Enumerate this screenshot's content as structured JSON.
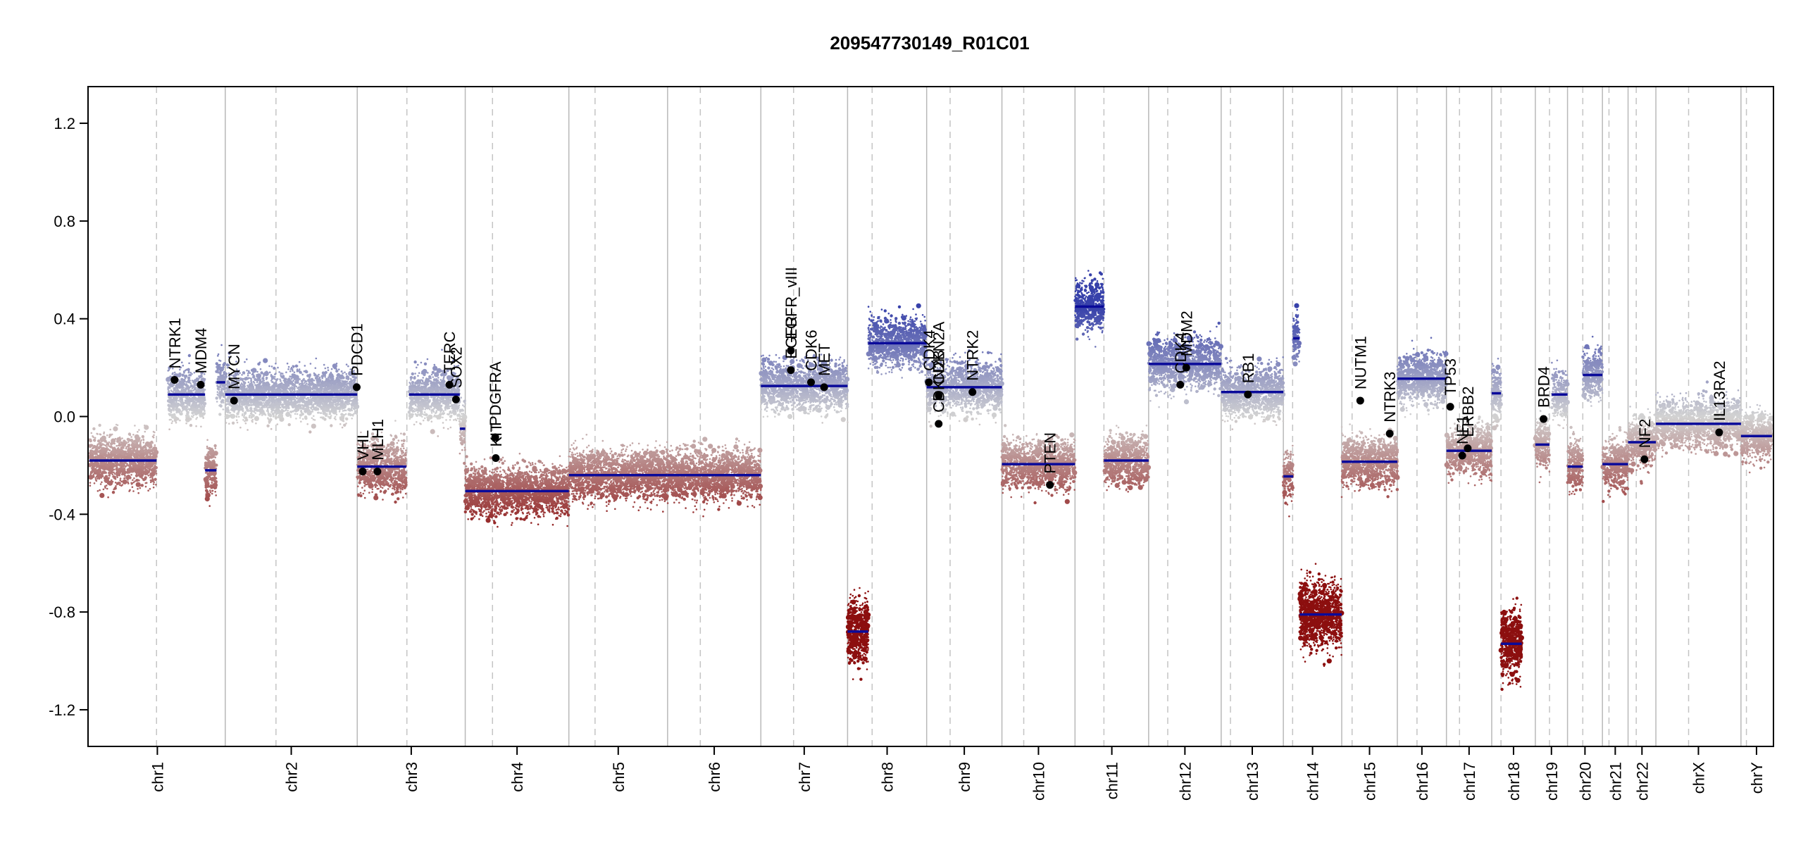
{
  "chart_data": {
    "type": "scatter",
    "title": "209547730149_R01C01",
    "xlabel": "",
    "ylabel": "",
    "ylim": [
      -1.35,
      1.35
    ],
    "yticks": [
      -1.2,
      -0.8,
      -0.4,
      0.0,
      0.4,
      0.8,
      1.2
    ],
    "ytick_labels": [
      "-1.2",
      "-0.8",
      "-0.4",
      "0.0",
      "0.4",
      "0.8",
      "1.2"
    ],
    "x_unit": "genome position (Mb, concatenated)",
    "chromosomes": [
      {
        "name": "chr1",
        "length": 249,
        "centromere": 123
      },
      {
        "name": "chr2",
        "length": 242,
        "centromere": 93
      },
      {
        "name": "chr3",
        "length": 198,
        "centromere": 91
      },
      {
        "name": "chr4",
        "length": 190,
        "centromere": 50
      },
      {
        "name": "chr5",
        "length": 181,
        "centromere": 48
      },
      {
        "name": "chr6",
        "length": 171,
        "centromere": 60
      },
      {
        "name": "chr7",
        "length": 159,
        "centromere": 60
      },
      {
        "name": "chr8",
        "length": 145,
        "centromere": 45
      },
      {
        "name": "chr9",
        "length": 138,
        "centromere": 43
      },
      {
        "name": "chr10",
        "length": 134,
        "centromere": 40
      },
      {
        "name": "chr11",
        "length": 135,
        "centromere": 53
      },
      {
        "name": "chr12",
        "length": 133,
        "centromere": 35
      },
      {
        "name": "chr13",
        "length": 114,
        "centromere": 17
      },
      {
        "name": "chr14",
        "length": 107,
        "centromere": 17
      },
      {
        "name": "chr15",
        "length": 102,
        "centromere": 19
      },
      {
        "name": "chr16",
        "length": 90,
        "centromere": 36
      },
      {
        "name": "chr17",
        "length": 83,
        "centromere": 24
      },
      {
        "name": "chr18",
        "length": 80,
        "centromere": 17
      },
      {
        "name": "chr19",
        "length": 59,
        "centromere": 26
      },
      {
        "name": "chr20",
        "length": 64,
        "centromere": 28
      },
      {
        "name": "chr21",
        "length": 47,
        "centromere": 12
      },
      {
        "name": "chr22",
        "length": 51,
        "centromere": 15
      },
      {
        "name": "chrX",
        "length": 156,
        "centromere": 60
      },
      {
        "name": "chrY",
        "length": 57,
        "centromere": 10
      }
    ],
    "segments": [
      {
        "chr": "chr1",
        "start": 0,
        "end": 123,
        "value": -0.18
      },
      {
        "chr": "chr1",
        "start": 144,
        "end": 212,
        "value": 0.09
      },
      {
        "chr": "chr1",
        "start": 212,
        "end": 233,
        "value": -0.22
      },
      {
        "chr": "chr1",
        "start": 233,
        "end": 249,
        "value": 0.14
      },
      {
        "chr": "chr2",
        "start": 0,
        "end": 242,
        "value": 0.09
      },
      {
        "chr": "chr3",
        "start": 0,
        "end": 90,
        "value": -0.205
      },
      {
        "chr": "chr3",
        "start": 95,
        "end": 188,
        "value": 0.09
      },
      {
        "chr": "chr3",
        "start": 188,
        "end": 198,
        "value": -0.05
      },
      {
        "chr": "chr4",
        "start": 0,
        "end": 190,
        "value": -0.305
      },
      {
        "chr": "chr5",
        "start": 0,
        "end": 181,
        "value": -0.24
      },
      {
        "chr": "chr6",
        "start": 0,
        "end": 171,
        "value": -0.24
      },
      {
        "chr": "chr7",
        "start": 0,
        "end": 159,
        "value": 0.125
      },
      {
        "chr": "chr8",
        "start": 0,
        "end": 38,
        "value": -0.88
      },
      {
        "chr": "chr8",
        "start": 38,
        "end": 145,
        "value": 0.3
      },
      {
        "chr": "chr9",
        "start": 0,
        "end": 138,
        "value": 0.12
      },
      {
        "chr": "chr10",
        "start": 0,
        "end": 134,
        "value": -0.195
      },
      {
        "chr": "chr11",
        "start": 0,
        "end": 53,
        "value": 0.45
      },
      {
        "chr": "chr11",
        "start": 53,
        "end": 135,
        "value": -0.18
      },
      {
        "chr": "chr12",
        "start": 0,
        "end": 133,
        "value": 0.215
      },
      {
        "chr": "chr13",
        "start": 0,
        "end": 114,
        "value": 0.1
      },
      {
        "chr": "chr14",
        "start": 0,
        "end": 18,
        "value": -0.245
      },
      {
        "chr": "chr14",
        "start": 18,
        "end": 30,
        "value": 0.32
      },
      {
        "chr": "chr14",
        "start": 30,
        "end": 107,
        "value": -0.81
      },
      {
        "chr": "chr15",
        "start": 0,
        "end": 102,
        "value": -0.185
      },
      {
        "chr": "chr16",
        "start": 0,
        "end": 90,
        "value": 0.155
      },
      {
        "chr": "chr17",
        "start": 0,
        "end": 83,
        "value": -0.14
      },
      {
        "chr": "chr18",
        "start": 0,
        "end": 17,
        "value": 0.095
      },
      {
        "chr": "chr18",
        "start": 17,
        "end": 55,
        "value": -0.93
      },
      {
        "chr": "chr19",
        "start": 0,
        "end": 26,
        "value": -0.115
      },
      {
        "chr": "chr19",
        "start": 30,
        "end": 59,
        "value": 0.09
      },
      {
        "chr": "chr20",
        "start": 0,
        "end": 28,
        "value": -0.205
      },
      {
        "chr": "chr20",
        "start": 28,
        "end": 64,
        "value": 0.17
      },
      {
        "chr": "chr21",
        "start": 0,
        "end": 47,
        "value": -0.195
      },
      {
        "chr": "chr22",
        "start": 0,
        "end": 51,
        "value": -0.105
      },
      {
        "chr": "chrX",
        "start": 0,
        "end": 156,
        "value": -0.03
      },
      {
        "chr": "chrY",
        "start": 0,
        "end": 57,
        "value": -0.08
      }
    ],
    "genes": [
      {
        "name": "NTRK1",
        "chr": "chr1",
        "pos": 156,
        "value": 0.15
      },
      {
        "name": "MDM4",
        "chr": "chr1",
        "pos": 204,
        "value": 0.13
      },
      {
        "name": "MYCN",
        "chr": "chr2",
        "pos": 16,
        "value": 0.065
      },
      {
        "name": "PDCD1",
        "chr": "chr2",
        "pos": 241,
        "value": 0.12
      },
      {
        "name": "VHL",
        "chr": "chr3",
        "pos": 10,
        "value": -0.225
      },
      {
        "name": "MLH1",
        "chr": "chr3",
        "pos": 37,
        "value": -0.225
      },
      {
        "name": "SOX2",
        "chr": "chr3",
        "pos": 181,
        "value": 0.07
      },
      {
        "name": "TERC",
        "chr": "chr3",
        "pos": 169,
        "value": 0.13
      },
      {
        "name": "PDGFRA",
        "chr": "chr4",
        "pos": 55,
        "value": -0.085
      },
      {
        "name": "KIT",
        "chr": "chr4",
        "pos": 56,
        "value": -0.17
      },
      {
        "name": "EGFR",
        "chr": "chr7",
        "pos": 55,
        "value": 0.19
      },
      {
        "name": "EGFR_vIII",
        "chr": "chr7",
        "pos": 55,
        "value": 0.27
      },
      {
        "name": "MET",
        "chr": "chr7",
        "pos": 116,
        "value": 0.12
      },
      {
        "name": "CDK6",
        "chr": "chr7",
        "pos": 92,
        "value": 0.14
      },
      {
        "name": "CDKN2A",
        "chr": "chr9",
        "pos": 22,
        "value": 0.085
      },
      {
        "name": "CDKN2B",
        "chr": "chr9",
        "pos": 22,
        "value": -0.03
      },
      {
        "name": "CDK4 ",
        "chr": "chr9",
        "pos": 4,
        "value": 0.14
      },
      {
        "name": "NTRK2",
        "chr": "chr9",
        "pos": 84,
        "value": 0.1
      },
      {
        "name": "PTEN",
        "chr": "chr10",
        "pos": 88,
        "value": -0.28
      },
      {
        "name": "CDK4",
        "chr": "chr12",
        "pos": 58,
        "value": 0.13
      },
      {
        "name": "MDM2",
        "chr": "chr12",
        "pos": 69,
        "value": 0.2
      },
      {
        "name": "RB1",
        "chr": "chr13",
        "pos": 49,
        "value": 0.09
      },
      {
        "name": "NUTM1",
        "chr": "chr15",
        "pos": 34,
        "value": 0.065
      },
      {
        "name": "NTRK3",
        "chr": "chr15",
        "pos": 88,
        "value": -0.07
      },
      {
        "name": "TP53",
        "chr": "chr17",
        "pos": 7,
        "value": 0.04
      },
      {
        "name": "NF1",
        "chr": "chr17",
        "pos": 29,
        "value": -0.16
      },
      {
        "name": "ERBB2",
        "chr": "chr17",
        "pos": 39,
        "value": -0.13
      },
      {
        "name": "BRD4",
        "chr": "chr19",
        "pos": 15,
        "value": -0.01
      },
      {
        "name": "NF2",
        "chr": "chr22",
        "pos": 30,
        "value": -0.175
      },
      {
        "name": "IL13RA2",
        "chr": "chrX",
        "pos": 116,
        "value": -0.065
      }
    ],
    "point_colors": {
      "gain": "#3b44a8",
      "neutral": "#d2d2d2",
      "loss": "#8f1414"
    },
    "segment_color": "#0a0a9a",
    "grid": false,
    "legend": "none"
  }
}
